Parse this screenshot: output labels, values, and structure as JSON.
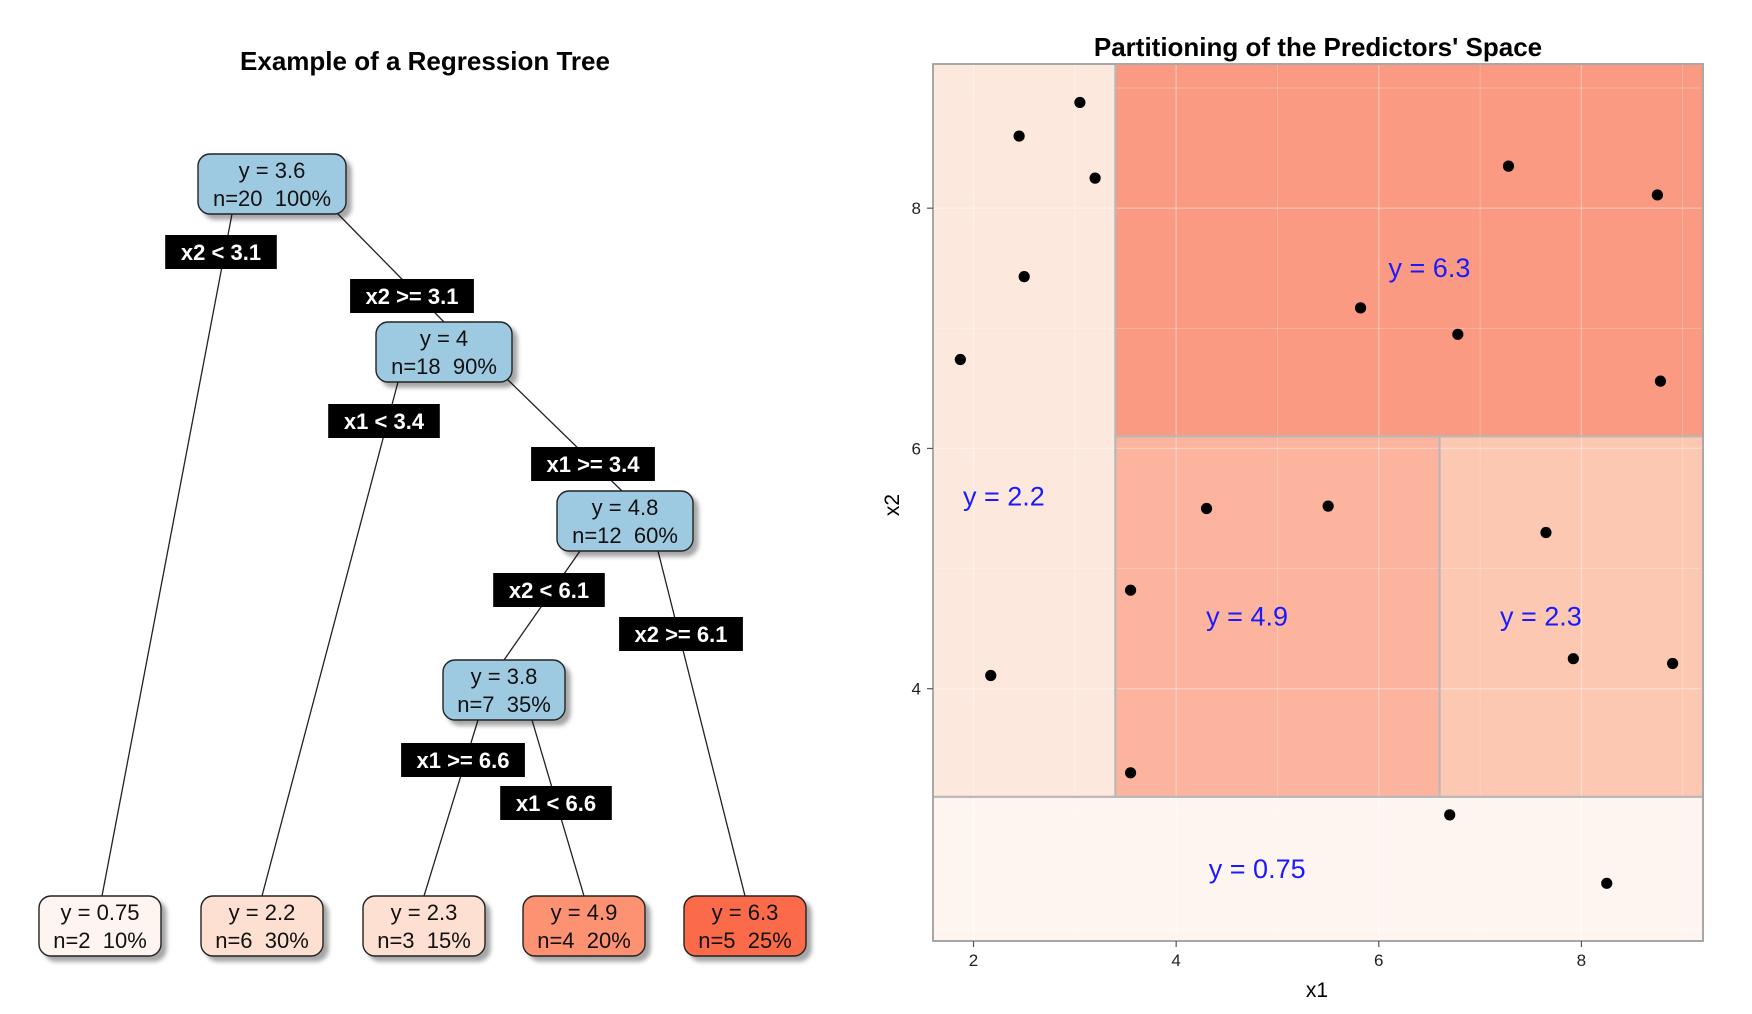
{
  "chart_data": [
    {
      "type": "tree",
      "title": "Example of a Regression Tree",
      "nodes": [
        {
          "id": "root",
          "label": "y = 3.6",
          "stats": "n=20  100%",
          "fill": "#9ecae1",
          "leaf": false
        },
        {
          "id": "n2",
          "label": "y = 4",
          "stats": "n=18  90%",
          "fill": "#9ecae1",
          "leaf": false
        },
        {
          "id": "n3",
          "label": "y = 4.8",
          "stats": "n=12  60%",
          "fill": "#9ecae1",
          "leaf": false
        },
        {
          "id": "n4",
          "label": "y = 3.8",
          "stats": "n=7  35%",
          "fill": "#9ecae1",
          "leaf": false
        },
        {
          "id": "leaf1",
          "label": "y = 0.75",
          "stats": "n=2  10%",
          "fill": "#fff5f0",
          "leaf": true
        },
        {
          "id": "leaf2",
          "label": "y = 2.2",
          "stats": "n=6  30%",
          "fill": "#fde0d2",
          "leaf": true
        },
        {
          "id": "leaf3",
          "label": "y = 2.3",
          "stats": "n=3  15%",
          "fill": "#fde0d2",
          "leaf": true
        },
        {
          "id": "leaf4",
          "label": "y = 4.9",
          "stats": "n=4  20%",
          "fill": "#fc9272",
          "leaf": true
        },
        {
          "id": "leaf5",
          "label": "y = 6.3",
          "stats": "n=5  25%",
          "fill": "#fb6a4a",
          "leaf": true
        }
      ],
      "edges": [
        {
          "from": "root",
          "to": "leaf1",
          "label": "x2 < 3.1"
        },
        {
          "from": "root",
          "to": "n2",
          "label": "x2 >= 3.1"
        },
        {
          "from": "n2",
          "to": "leaf2",
          "label": "x1 < 3.4"
        },
        {
          "from": "n2",
          "to": "n3",
          "label": "x1 >= 3.4"
        },
        {
          "from": "n3",
          "to": "n4",
          "label": "x2 < 6.1"
        },
        {
          "from": "n3",
          "to": "leaf5",
          "label": "x2 >= 6.1"
        },
        {
          "from": "n4",
          "to": "leaf3",
          "label": "x1 >= 6.6"
        },
        {
          "from": "n4",
          "to": "leaf4",
          "label": "x1 < 6.6"
        }
      ]
    },
    {
      "type": "scatter",
      "title": "Partitioning of the Predictors' Space",
      "xlabel": "x1",
      "ylabel": "x2",
      "xlim": [
        1.6,
        9.2
      ],
      "ylim": [
        1.9,
        9.2
      ],
      "xticks": [
        2,
        4,
        6,
        8
      ],
      "yticks": [
        4,
        6,
        8
      ],
      "grid": true,
      "label_color": "#1a1aff",
      "regions": [
        {
          "x1": [
            1.6,
            9.2
          ],
          "x2": [
            1.9,
            3.1
          ],
          "label": "y = 0.75",
          "fill": "#fff5f0",
          "label_at": [
            4.8,
            2.5
          ]
        },
        {
          "x1": [
            1.6,
            3.4
          ],
          "x2": [
            3.1,
            9.2
          ],
          "label": "y = 2.2",
          "fill": "#fde8de",
          "label_at": [
            2.3,
            5.6
          ]
        },
        {
          "x1": [
            3.4,
            9.2
          ],
          "x2": [
            6.1,
            9.2
          ],
          "label": "y = 6.3",
          "fill": "#fb9a82",
          "label_at": [
            6.5,
            7.5
          ]
        },
        {
          "x1": [
            3.4,
            6.6
          ],
          "x2": [
            3.1,
            6.1
          ],
          "label": "y = 4.9",
          "fill": "#fcb49e",
          "label_at": [
            4.7,
            4.6
          ]
        },
        {
          "x1": [
            6.6,
            9.2
          ],
          "x2": [
            3.1,
            6.1
          ],
          "label": "y = 2.3",
          "fill": "#fdc8b2",
          "label_at": [
            7.6,
            4.6
          ]
        }
      ],
      "points": [
        {
          "x": 3.05,
          "y": 8.88
        },
        {
          "x": 2.45,
          "y": 8.6
        },
        {
          "x": 3.2,
          "y": 8.25
        },
        {
          "x": 2.5,
          "y": 7.43
        },
        {
          "x": 1.87,
          "y": 6.74
        },
        {
          "x": 2.17,
          "y": 4.11
        },
        {
          "x": 7.28,
          "y": 8.35
        },
        {
          "x": 8.75,
          "y": 8.11
        },
        {
          "x": 5.82,
          "y": 7.17
        },
        {
          "x": 6.78,
          "y": 6.95
        },
        {
          "x": 8.78,
          "y": 6.56
        },
        {
          "x": 4.3,
          "y": 5.5
        },
        {
          "x": 5.5,
          "y": 5.52
        },
        {
          "x": 3.55,
          "y": 4.82
        },
        {
          "x": 3.55,
          "y": 3.3
        },
        {
          "x": 7.65,
          "y": 5.3
        },
        {
          "x": 7.92,
          "y": 4.25
        },
        {
          "x": 8.9,
          "y": 4.21
        },
        {
          "x": 6.7,
          "y": 2.95
        },
        {
          "x": 8.25,
          "y": 2.38
        }
      ]
    }
  ]
}
